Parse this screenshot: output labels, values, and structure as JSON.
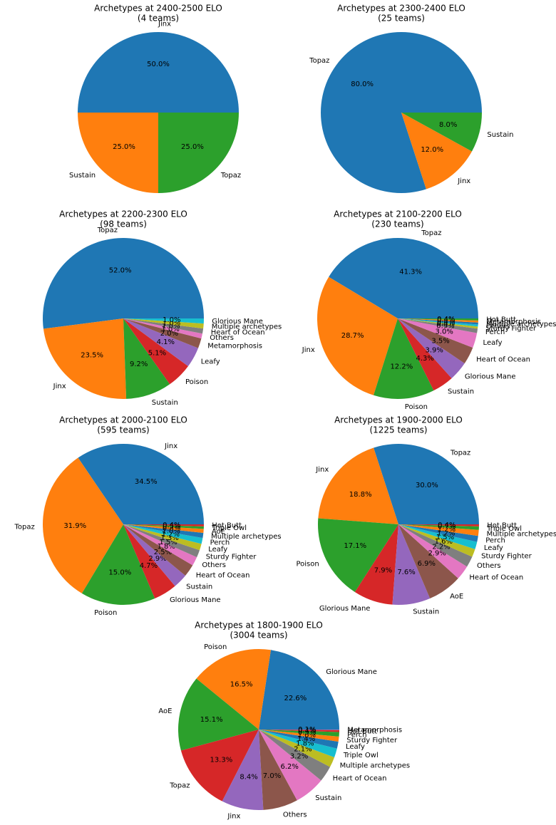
{
  "chart_data": [
    {
      "type": "pie",
      "title": "Archetypes at 2400-2500 ELO",
      "subtitle": "(4 teams)",
      "categories": [
        "Jinx",
        "Sustain",
        "Topaz"
      ],
      "values": [
        50.0,
        25.0,
        25.0
      ],
      "value_labels": [
        "50.0%",
        "25.0%",
        "25.0%"
      ],
      "colors": [
        "#1f77b4",
        "#ff7f0e",
        "#2ca02c"
      ]
    },
    {
      "type": "pie",
      "title": "Archetypes at 2300-2400 ELO",
      "subtitle": "(25 teams)",
      "categories": [
        "Topaz",
        "Jinx",
        "Sustain"
      ],
      "values": [
        80.0,
        12.0,
        8.0
      ],
      "value_labels": [
        "80.0%",
        "12.0%",
        "8.0%"
      ],
      "colors": [
        "#1f77b4",
        "#ff7f0e",
        "#2ca02c"
      ]
    },
    {
      "type": "pie",
      "title": "Archetypes at 2200-2300 ELO",
      "subtitle": "(98 teams)",
      "categories": [
        "Topaz",
        "Jinx",
        "Sustain",
        "Poison",
        "Leafy",
        "Metamorphosis",
        "Others",
        "Heart of Ocean",
        "Multiple archetypes",
        "Glorious Mane"
      ],
      "values": [
        52.0,
        23.5,
        9.2,
        5.1,
        4.1,
        2.0,
        1.0,
        1.0,
        1.0,
        1.0
      ],
      "value_labels": [
        "52.0%",
        "23.5%",
        "9.2%",
        "5.1%",
        "4.1%",
        "2.0%",
        "1.0%",
        "1.0%",
        "1.0%",
        "1.0%"
      ],
      "colors": [
        "#1f77b4",
        "#ff7f0e",
        "#2ca02c",
        "#d62728",
        "#9467bd",
        "#8c564b",
        "#e377c2",
        "#7f7f7f",
        "#bcbd22",
        "#17becf"
      ]
    },
    {
      "type": "pie",
      "title": "Archetypes at 2100-2200 ELO",
      "subtitle": "(230 teams)",
      "categories": [
        "Topaz",
        "Jinx",
        "Poison",
        "Sustain",
        "Glorious Mane",
        "Heart of Ocean",
        "Leafy",
        "Perch",
        "Sturdy Fighter",
        "Others",
        "Multiple archetypes",
        "Metamorphosis",
        "Hot Butt"
      ],
      "values": [
        41.3,
        28.7,
        12.2,
        4.3,
        3.9,
        3.5,
        3.0,
        0.9,
        0.4,
        0.4,
        0.4,
        0.4,
        0.4
      ],
      "value_labels": [
        "41.3%",
        "28.7%",
        "12.2%",
        "4.3%",
        "3.9%",
        "3.5%",
        "3.0%",
        "0.9%",
        "0.4%",
        "0.4%",
        "0.4%",
        "0.4%",
        "0.4%"
      ],
      "colors": [
        "#1f77b4",
        "#ff7f0e",
        "#2ca02c",
        "#d62728",
        "#9467bd",
        "#8c564b",
        "#e377c2",
        "#7f7f7f",
        "#bcbd22",
        "#17becf",
        "#1f77b4",
        "#ff7f0e",
        "#2ca02c"
      ]
    },
    {
      "type": "pie",
      "title": "Archetypes at 2000-2100 ELO",
      "subtitle": "(595 teams)",
      "categories": [
        "Jinx",
        "Topaz",
        "Poison",
        "Glorious Mane",
        "Sustain",
        "Heart of Ocean",
        "Others",
        "Sturdy Fighter",
        "Leafy",
        "Perch",
        "Multiple archetypes",
        "AoE",
        "Triple Owl",
        "Hot Butt"
      ],
      "values": [
        34.5,
        31.9,
        15.0,
        4.7,
        2.9,
        2.5,
        1.8,
        1.5,
        1.3,
        1.2,
        1.0,
        0.8,
        0.5,
        0.4
      ],
      "value_labels": [
        "34.5%",
        "31.9%",
        "15.0%",
        "4.7%",
        "2.9%",
        "2.5%",
        "1.8%",
        "1.5%",
        "1.3%",
        "1.2%",
        "1.0%",
        "0.8%",
        "0.5%",
        "0.4%"
      ],
      "colors": [
        "#1f77b4",
        "#ff7f0e",
        "#2ca02c",
        "#d62728",
        "#9467bd",
        "#8c564b",
        "#e377c2",
        "#7f7f7f",
        "#bcbd22",
        "#17becf",
        "#1f77b4",
        "#ff7f0e",
        "#2ca02c",
        "#d62728"
      ]
    },
    {
      "type": "pie",
      "title": "Archetypes at 1900-2000 ELO",
      "subtitle": "(1225 teams)",
      "categories": [
        "Topaz",
        "Jinx",
        "Poison",
        "Glorious Mane",
        "Sustain",
        "AoE",
        "Heart of Ocean",
        "Others",
        "Sturdy Fighter",
        "Leafy",
        "Perch",
        "Multiple archetypes",
        "Triple Owl",
        "Hot Butt"
      ],
      "values": [
        30.0,
        18.8,
        17.1,
        7.9,
        7.6,
        6.9,
        2.9,
        2.2,
        1.6,
        1.5,
        1.2,
        1.2,
        0.7,
        0.4
      ],
      "value_labels": [
        "30.0%",
        "18.8%",
        "17.1%",
        "7.9%",
        "7.6%",
        "6.9%",
        "2.9%",
        "2.2%",
        "1.6%",
        "1.5%",
        "1.2%",
        "1.2%",
        "0.7%",
        "0.4%"
      ],
      "colors": [
        "#1f77b4",
        "#ff7f0e",
        "#2ca02c",
        "#d62728",
        "#9467bd",
        "#8c564b",
        "#e377c2",
        "#7f7f7f",
        "#bcbd22",
        "#17becf",
        "#1f77b4",
        "#ff7f0e",
        "#2ca02c",
        "#d62728"
      ]
    },
    {
      "type": "pie",
      "title": "Archetypes at 1800-1900 ELO",
      "subtitle": "(3004 teams)",
      "categories": [
        "Glorious Mane",
        "Poison",
        "AoE",
        "Topaz",
        "Jinx",
        "Others",
        "Sustain",
        "Heart of Ocean",
        "Multiple archetypes",
        "Triple Owl",
        "Leafy",
        "Sturdy Fighter",
        "Perch",
        "Hot Butt",
        "Metamorphosis"
      ],
      "values": [
        22.6,
        16.5,
        15.1,
        13.3,
        8.4,
        7.0,
        6.2,
        3.2,
        2.1,
        1.8,
        1.4,
        1.0,
        0.9,
        0.4,
        0.1
      ],
      "value_labels": [
        "22.6%",
        "16.5%",
        "15.1%",
        "13.3%",
        "8.4%",
        "7.0%",
        "6.2%",
        "3.2%",
        "2.1%",
        "1.8%",
        "1.4%",
        "1.0%",
        "0.9%",
        "0.4%",
        "0.1%"
      ],
      "colors": [
        "#1f77b4",
        "#ff7f0e",
        "#2ca02c",
        "#d62728",
        "#9467bd",
        "#8c564b",
        "#e377c2",
        "#7f7f7f",
        "#bcbd22",
        "#17becf",
        "#1f77b4",
        "#ff7f0e",
        "#2ca02c",
        "#d62728",
        "#9467bd"
      ]
    }
  ]
}
